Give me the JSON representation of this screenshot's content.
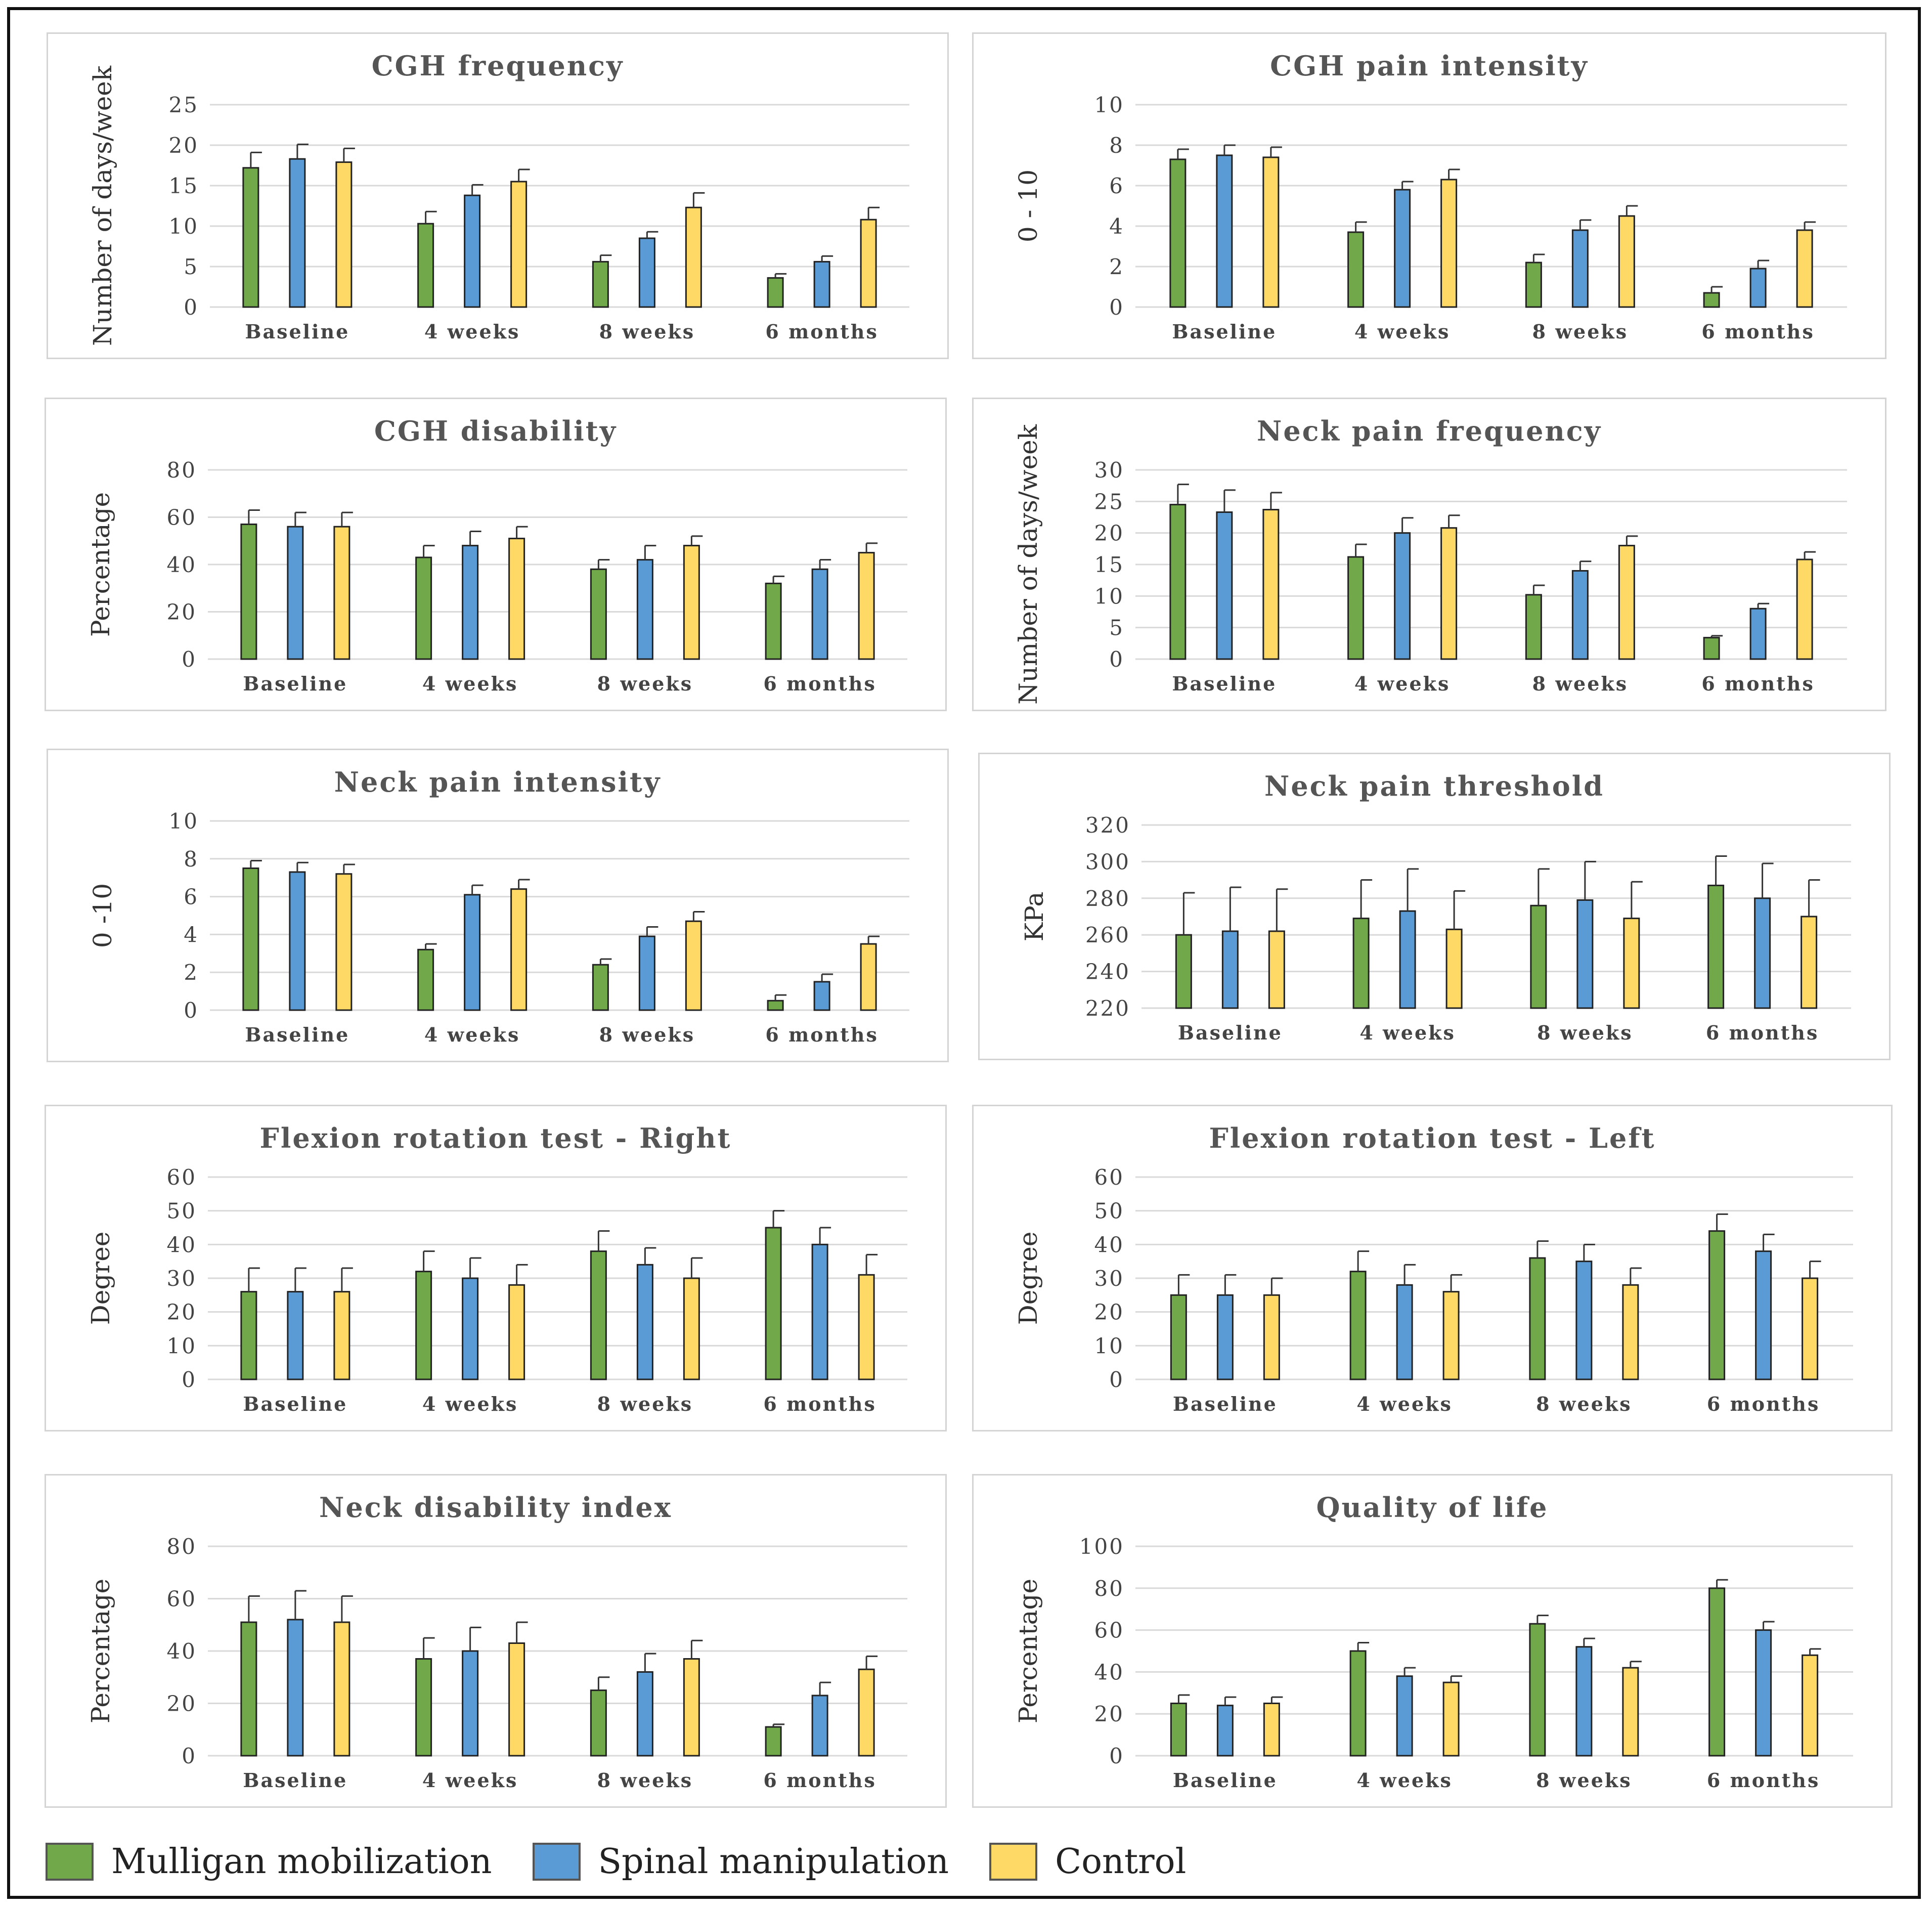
{
  "legend": [
    {
      "name": "Mulligan mobilization",
      "color": "#70a84a"
    },
    {
      "name": "Spinal manipulation",
      "color": "#5b9bd5"
    },
    {
      "name": "Control",
      "color": "#ffd966"
    }
  ],
  "chart_data": [
    {
      "type": "bar",
      "title": "CGH frequency",
      "ylabel": "Number of days/week",
      "categories": [
        "Baseline",
        "4 weeks",
        "8 weeks",
        "6 months"
      ],
      "ylim": [
        0,
        25
      ],
      "yticks": [
        0,
        5,
        10,
        15,
        20,
        25
      ],
      "series": [
        {
          "name": "Mulligan mobilization",
          "values": [
            17.2,
            10.3,
            5.6,
            3.6
          ],
          "errors": [
            1.9,
            1.5,
            0.8,
            0.5
          ]
        },
        {
          "name": "Spinal manipulation",
          "values": [
            18.3,
            13.8,
            8.5,
            5.6
          ],
          "errors": [
            1.8,
            1.3,
            0.8,
            0.7
          ]
        },
        {
          "name": "Control",
          "values": [
            17.9,
            15.5,
            12.3,
            10.8
          ],
          "errors": [
            1.7,
            1.5,
            1.8,
            1.5
          ]
        }
      ]
    },
    {
      "type": "bar",
      "title": "CGH pain intensity",
      "ylabel": "0 - 10",
      "categories": [
        "Baseline",
        "4 weeks",
        "8 weeks",
        "6 months"
      ],
      "ylim": [
        0,
        10
      ],
      "yticks": [
        0,
        2,
        4,
        6,
        8,
        10
      ],
      "series": [
        {
          "name": "Mulligan mobilization",
          "values": [
            7.3,
            3.7,
            2.2,
            0.7
          ],
          "errors": [
            0.5,
            0.5,
            0.4,
            0.3
          ]
        },
        {
          "name": "Spinal manipulation",
          "values": [
            7.5,
            5.8,
            3.8,
            1.9
          ],
          "errors": [
            0.5,
            0.4,
            0.5,
            0.4
          ]
        },
        {
          "name": "Control",
          "values": [
            7.4,
            6.3,
            4.5,
            3.8
          ],
          "errors": [
            0.5,
            0.5,
            0.5,
            0.4
          ]
        }
      ]
    },
    {
      "type": "bar",
      "title": "CGH disability",
      "ylabel": "Percentage",
      "categories": [
        "Baseline",
        "4 weeks",
        "8 weeks",
        "6 months"
      ],
      "ylim": [
        0,
        80
      ],
      "yticks": [
        0,
        20,
        40,
        60,
        80
      ],
      "series": [
        {
          "name": "Mulligan mobilization",
          "values": [
            57,
            43,
            38,
            32
          ],
          "errors": [
            6,
            5,
            4,
            3
          ]
        },
        {
          "name": "Spinal manipulation",
          "values": [
            56,
            48,
            42,
            38
          ],
          "errors": [
            6,
            6,
            6,
            4
          ]
        },
        {
          "name": "Control",
          "values": [
            56,
            51,
            48,
            45
          ],
          "errors": [
            6,
            5,
            4,
            4
          ]
        }
      ]
    },
    {
      "type": "bar",
      "title": "Neck pain frequency",
      "ylabel": "Number of days/week",
      "categories": [
        "Baseline",
        "4 weeks",
        "8 weeks",
        "6 months"
      ],
      "ylim": [
        0,
        30
      ],
      "yticks": [
        0,
        5,
        10,
        15,
        20,
        25,
        30
      ],
      "series": [
        {
          "name": "Mulligan mobilization",
          "values": [
            24.5,
            16.2,
            10.2,
            3.4
          ],
          "errors": [
            3.2,
            2.0,
            1.5,
            0.3
          ]
        },
        {
          "name": "Spinal manipulation",
          "values": [
            23.3,
            20.0,
            14.0,
            8.0
          ],
          "errors": [
            3.5,
            2.4,
            1.5,
            0.8
          ]
        },
        {
          "name": "Control",
          "values": [
            23.7,
            20.8,
            18.0,
            15.8
          ],
          "errors": [
            2.7,
            2.0,
            1.5,
            1.2
          ]
        }
      ]
    },
    {
      "type": "bar",
      "title": "Neck pain intensity",
      "ylabel": "0 -10",
      "categories": [
        "Baseline",
        "4 weeks",
        "8 weeks",
        "6 months"
      ],
      "ylim": [
        0,
        10
      ],
      "yticks": [
        0,
        2,
        4,
        6,
        8,
        10
      ],
      "series": [
        {
          "name": "Mulligan mobilization",
          "values": [
            7.5,
            3.2,
            2.4,
            0.5
          ],
          "errors": [
            0.4,
            0.3,
            0.3,
            0.3
          ]
        },
        {
          "name": "Spinal manipulation",
          "values": [
            7.3,
            6.1,
            3.9,
            1.5
          ],
          "errors": [
            0.5,
            0.5,
            0.5,
            0.4
          ]
        },
        {
          "name": "Control",
          "values": [
            7.2,
            6.4,
            4.7,
            3.5
          ],
          "errors": [
            0.5,
            0.5,
            0.5,
            0.4
          ]
        }
      ]
    },
    {
      "type": "bar",
      "title": "Neck pain threshold",
      "ylabel": "KPa",
      "categories": [
        "Baseline",
        "4 weeks",
        "8 weeks",
        "6 months"
      ],
      "ylim": [
        220,
        320
      ],
      "yticks": [
        220,
        240,
        260,
        280,
        300,
        320
      ],
      "series": [
        {
          "name": "Mulligan mobilization",
          "values": [
            260,
            269,
            276,
            287
          ],
          "errors": [
            23,
            21,
            20,
            16
          ]
        },
        {
          "name": "Spinal manipulation",
          "values": [
            262,
            273,
            279,
            280
          ],
          "errors": [
            24,
            23,
            21,
            19
          ]
        },
        {
          "name": "Control",
          "values": [
            262,
            263,
            269,
            270
          ],
          "errors": [
            23,
            21,
            20,
            20
          ]
        }
      ]
    },
    {
      "type": "bar",
      "title": "Flexion rotation test - Right",
      "ylabel": "Degree",
      "categories": [
        "Baseline",
        "4 weeks",
        "8 weeks",
        "6 months"
      ],
      "ylim": [
        0,
        60
      ],
      "yticks": [
        0,
        10,
        20,
        30,
        40,
        50,
        60
      ],
      "series": [
        {
          "name": "Mulligan mobilization",
          "values": [
            26,
            32,
            38,
            45
          ],
          "errors": [
            7,
            6,
            6,
            5
          ]
        },
        {
          "name": "Spinal manipulation",
          "values": [
            26,
            30,
            34,
            40
          ],
          "errors": [
            7,
            6,
            5,
            5
          ]
        },
        {
          "name": "Control",
          "values": [
            26,
            28,
            30,
            31
          ],
          "errors": [
            7,
            6,
            6,
            6
          ]
        }
      ]
    },
    {
      "type": "bar",
      "title": "Flexion rotation test - Left",
      "ylabel": "Degree",
      "categories": [
        "Baseline",
        "4 weeks",
        "8 weeks",
        "6 months"
      ],
      "ylim": [
        0,
        60
      ],
      "yticks": [
        0,
        10,
        20,
        30,
        40,
        50,
        60
      ],
      "series": [
        {
          "name": "Mulligan mobilization",
          "values": [
            25,
            32,
            36,
            44
          ],
          "errors": [
            6,
            6,
            5,
            5
          ]
        },
        {
          "name": "Spinal manipulation",
          "values": [
            25,
            28,
            35,
            38
          ],
          "errors": [
            6,
            6,
            5,
            5
          ]
        },
        {
          "name": "Control",
          "values": [
            25,
            26,
            28,
            30
          ],
          "errors": [
            5,
            5,
            5,
            5
          ]
        }
      ]
    },
    {
      "type": "bar",
      "title": "Neck disability index",
      "ylabel": "Percentage",
      "categories": [
        "Baseline",
        "4 weeks",
        "8 weeks",
        "6 months"
      ],
      "ylim": [
        0,
        80
      ],
      "yticks": [
        0,
        20,
        40,
        60,
        80
      ],
      "series": [
        {
          "name": "Mulligan mobilization",
          "values": [
            51,
            37,
            25,
            11
          ],
          "errors": [
            10,
            8,
            5,
            1
          ]
        },
        {
          "name": "Spinal manipulation",
          "values": [
            52,
            40,
            32,
            23
          ],
          "errors": [
            11,
            9,
            7,
            5
          ]
        },
        {
          "name": "Control",
          "values": [
            51,
            43,
            37,
            33
          ],
          "errors": [
            10,
            8,
            7,
            5
          ]
        }
      ]
    },
    {
      "type": "bar",
      "title": "Quality of life",
      "ylabel": "Percentage",
      "categories": [
        "Baseline",
        "4 weeks",
        "8 weeks",
        "6 months"
      ],
      "ylim": [
        0,
        100
      ],
      "yticks": [
        0,
        20,
        40,
        60,
        80,
        100
      ],
      "series": [
        {
          "name": "Mulligan mobilization",
          "values": [
            25,
            50,
            63,
            80
          ],
          "errors": [
            4,
            4,
            4,
            4
          ]
        },
        {
          "name": "Spinal manipulation",
          "values": [
            24,
            38,
            52,
            60
          ],
          "errors": [
            4,
            4,
            4,
            4
          ]
        },
        {
          "name": "Control",
          "values": [
            25,
            35,
            42,
            48
          ],
          "errors": [
            3,
            3,
            3,
            3
          ]
        }
      ]
    }
  ]
}
